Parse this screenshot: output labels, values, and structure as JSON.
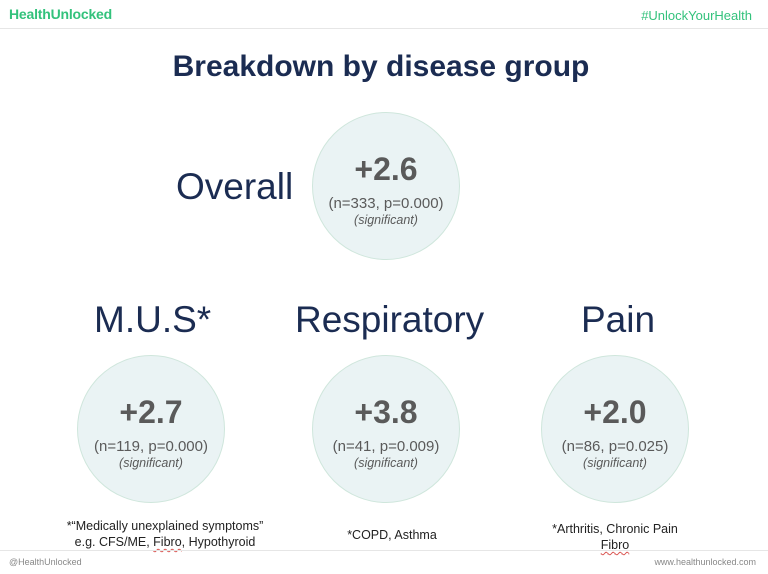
{
  "header": {
    "brand": "HealthUnlocked",
    "hashtag": "#UnlockYourHealth"
  },
  "title": "Breakdown by disease group",
  "overall": {
    "label": "Overall",
    "value": "+2.6",
    "stats": "(n=333, p=0.000)",
    "significance": "(significant)"
  },
  "groups": [
    {
      "label": "M.U.S*",
      "value": "+2.7",
      "stats": "(n=119, p=0.000)",
      "significance": "(significant)",
      "note_line1": "*“Medically unexplained symptoms”",
      "note_line2_pre": "e.g. CFS/ME, ",
      "note_line2_marked": "Fibro",
      "note_line2_post": ", Hypothyroid"
    },
    {
      "label": "Respiratory",
      "value": "+3.8",
      "stats": "(n=41, p=0.009)",
      "significance": "(significant)",
      "note_line1": "*COPD, Asthma"
    },
    {
      "label": "Pain",
      "value": "+2.0",
      "stats": "(n=86, p=0.025)",
      "significance": "(significant)",
      "note_line1": "*Arthritis, Chronic Pain",
      "note_line2_marked": "Fibro"
    }
  ],
  "footer": {
    "handle": "@HealthUnlocked",
    "url": "www.healthunlocked.com"
  },
  "colors": {
    "brand_green": "#33c27c",
    "title_navy": "#1b2c52",
    "circle_fill": "#eaf3f4"
  }
}
